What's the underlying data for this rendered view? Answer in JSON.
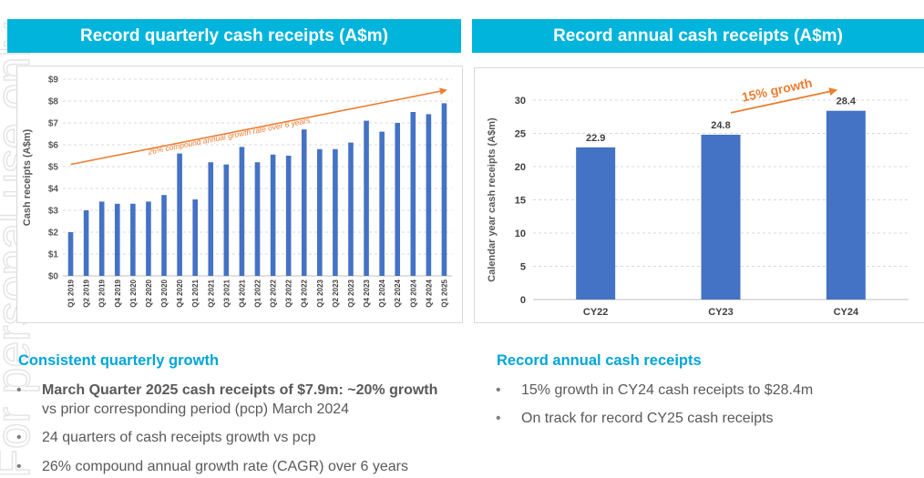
{
  "left_panel": {
    "banner": "Record quarterly cash receipts (A$m)",
    "section_title": "Consistent quarterly growth",
    "bullets": [
      {
        "bold": "March Quarter 2025 cash receipts of $7.9m: ~20% growth",
        "rest": " vs prior corresponding period (pcp) March 2024"
      },
      {
        "bold": "",
        "rest": "24 quarters of cash receipts growth vs pcp"
      },
      {
        "bold": "",
        "rest": "26% compound annual growth rate (CAGR) over 6 years"
      }
    ]
  },
  "right_panel": {
    "banner": "Record annual cash receipts (A$m)",
    "section_title": "Record annual cash receipts",
    "bullets": [
      {
        "bold": "",
        "rest": "15% growth in CY24 cash receipts to $28.4m"
      },
      {
        "bold": "",
        "rest": "On track for record CY25 cash receipts"
      }
    ]
  },
  "bullet_symbol": "•",
  "watermark_text": "For personal use only",
  "colors": {
    "banner": "#00b4dc",
    "bar": "#4472c4",
    "accent": "#ed7d31",
    "section_title": "#00a6d6"
  },
  "chart_data": [
    {
      "type": "bar",
      "title": "Record quarterly cash receipts (A$m)",
      "xlabel": "",
      "ylabel": "Cash receipts (A$m)",
      "ylim": [
        0,
        9
      ],
      "ytick_labels": [
        "$0",
        "$1",
        "$2",
        "$3",
        "$4",
        "$5",
        "$6",
        "$7",
        "$8",
        "$9"
      ],
      "categories": [
        "Q1 2019",
        "Q2 2019",
        "Q3 2019",
        "Q4 2019",
        "Q1 2020",
        "Q2 2020",
        "Q3 2020",
        "Q4 2020",
        "Q1 2021",
        "Q2 2021",
        "Q3 2021",
        "Q4 2021",
        "Q1 2022",
        "Q2 2022",
        "Q3 2022",
        "Q4 2022",
        "Q1 2023",
        "Q2 2023",
        "Q3 2023",
        "Q4 2023",
        "Q1 2024",
        "Q2 2024",
        "Q3 2024",
        "Q4 2024",
        "Q1 2025"
      ],
      "values": [
        2.0,
        3.0,
        3.4,
        3.3,
        3.3,
        3.4,
        3.7,
        5.6,
        3.5,
        5.2,
        5.1,
        5.9,
        5.2,
        5.55,
        5.5,
        6.7,
        5.8,
        5.8,
        6.1,
        7.1,
        6.6,
        7.0,
        7.5,
        7.4,
        7.9
      ],
      "annotation": {
        "text": "26% compound annual growth rate over 6 years",
        "from": [
          0,
          5.1
        ],
        "to": [
          24.1,
          8.5
        ]
      }
    },
    {
      "type": "bar",
      "title": "Record annual cash receipts (A$m)",
      "xlabel": "",
      "ylabel": "Calendar year cash receipts (A$m)",
      "ylim": [
        0,
        30
      ],
      "yticks": [
        0,
        5,
        10,
        15,
        20,
        25,
        30
      ],
      "categories": [
        "CY22",
        "CY23",
        "CY24"
      ],
      "values": [
        22.9,
        24.8,
        28.4
      ],
      "data_labels": [
        "22.9",
        "24.8",
        "28.4"
      ],
      "annotation": {
        "text": "15% growth",
        "from": [
          1.08,
          28.1
        ],
        "to": [
          1.92,
          31.5
        ]
      }
    }
  ]
}
